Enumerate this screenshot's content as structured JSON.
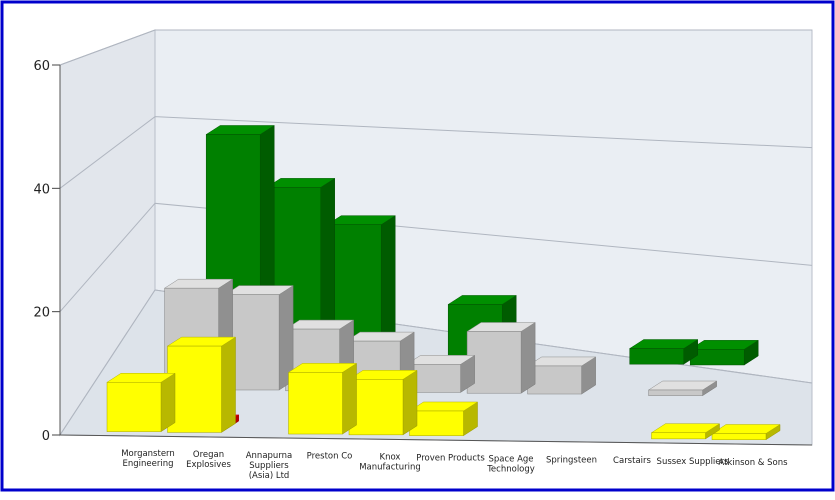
{
  "chart_data": {
    "type": "bar",
    "subtype": "3d-grouped",
    "title": "",
    "xlabel": "",
    "ylabel": "",
    "ylim": [
      0,
      60
    ],
    "yticks": [
      "0",
      "20",
      "40",
      "60"
    ],
    "grid": true,
    "legend": "none",
    "categories": [
      "Morganstern Engineering",
      "Oregan Explosives",
      "Annapurna Suppliers (Asia) Ltd",
      "Preston Co",
      "Knox Manufacturing",
      "Proven Products",
      "Space Age Technology",
      "Springsteen",
      "Carstairs",
      "Sussex Suppliers",
      "Atkinson & Sons"
    ],
    "category_lines": [
      [
        "Morganstern",
        "Engineering"
      ],
      [
        "Oregan",
        "Explosives"
      ],
      [
        "Annapurna",
        "Suppliers",
        "(Asia) Ltd"
      ],
      [
        "Preston Co"
      ],
      [
        "Knox",
        "Manufacturing"
      ],
      [
        "Proven Products"
      ],
      [
        "Space Age",
        "Technology"
      ],
      [
        "Springsteen"
      ],
      [
        "Carstairs"
      ],
      [
        "Sussex Suppliers"
      ],
      [
        "Atkinson & Sons"
      ]
    ],
    "series": [
      {
        "color": "#ffff00",
        "values": [
          8,
          14,
          0,
          10,
          9,
          4,
          0,
          0,
          0,
          1,
          1
        ]
      },
      {
        "color": "#ff0000",
        "values": [
          1,
          1,
          0,
          0,
          0,
          0,
          0,
          0,
          0,
          0,
          0
        ]
      },
      {
        "color": "#c8c8c8",
        "values": [
          18,
          17,
          11,
          9,
          5,
          11,
          5,
          0,
          1,
          0,
          0
        ]
      },
      {
        "color": "#008000",
        "values": [
          43,
          33,
          26,
          0,
          11,
          0,
          0,
          3,
          3,
          0,
          0
        ]
      }
    ]
  }
}
